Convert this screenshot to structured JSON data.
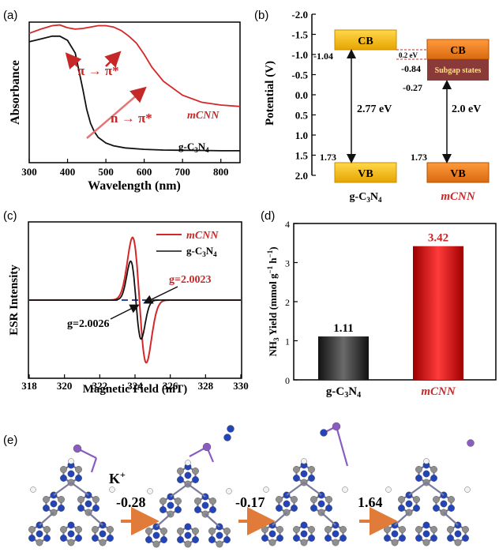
{
  "panel_labels": {
    "a": "(a)",
    "b": "(b)",
    "c": "(c)",
    "d": "(d)",
    "e": "(e)"
  },
  "chart_data": [
    {
      "panel": "a",
      "type": "line",
      "xlabel": "Wavelength (nm)",
      "ylabel": "Absorbance",
      "xlim": [
        300,
        850
      ],
      "xticks": [
        300,
        400,
        500,
        600,
        700,
        800
      ],
      "yticks_shown": false,
      "series": [
        {
          "name": "mCNN",
          "color": "#d62728",
          "x": [
            300,
            330,
            360,
            380,
            400,
            420,
            440,
            460,
            480,
            500,
            520,
            540,
            560,
            580,
            600,
            620,
            650,
            700,
            750,
            800,
            850
          ],
          "y": [
            0.92,
            0.95,
            0.975,
            0.98,
            0.96,
            0.95,
            0.955,
            0.965,
            0.975,
            0.975,
            0.965,
            0.94,
            0.9,
            0.85,
            0.77,
            0.68,
            0.58,
            0.48,
            0.43,
            0.41,
            0.4
          ]
        },
        {
          "name": "g-C3N4",
          "color": "#111111",
          "x": [
            300,
            330,
            360,
            380,
            400,
            420,
            440,
            450,
            460,
            470,
            480,
            500,
            520,
            550,
            600,
            650,
            700,
            750,
            800,
            850
          ],
          "y": [
            0.86,
            0.88,
            0.9,
            0.9,
            0.87,
            0.78,
            0.52,
            0.38,
            0.28,
            0.22,
            0.18,
            0.14,
            0.12,
            0.105,
            0.095,
            0.09,
            0.088,
            0.087,
            0.085,
            0.085
          ]
        }
      ],
      "annotations": [
        "π → π*",
        "n → π*"
      ],
      "series_labels": {
        "mCNN": "mCNN",
        "g-C3N4": "g-C"
      }
    },
    {
      "panel": "b",
      "type": "band-diagram",
      "ylabel": "Potential (V)",
      "ylim": [
        -2.0,
        2.0
      ],
      "yticks": [
        "-2.0",
        "-1.5",
        "-1.0",
        "-0.5",
        "0.0",
        "0.5",
        "1.0",
        "1.5",
        "2.0"
      ],
      "materials": [
        {
          "name": "g-C",
          "cb": -1.04,
          "vb": 1.73,
          "gap_label": "2.77 eV",
          "cb_label": "CB",
          "vb_label": "VB",
          "cb_value": "-1.04",
          "vb_value": "1.73"
        },
        {
          "name": "mCNN",
          "cb": -0.84,
          "vb": 1.73,
          "subgap": -0.27,
          "gap_label": "2.0 eV",
          "cb_label": "CB",
          "vb_label": "VB",
          "cb_value": "-0.84",
          "vb_value": "1.73",
          "subgap_label": "Subgap states",
          "subgap_value": "-0.27"
        }
      ],
      "offset_label": "0.2 eV"
    },
    {
      "panel": "c",
      "type": "line",
      "xlabel": "Magnetic Field (mT)",
      "ylabel": "ESR Intensity",
      "xlim": [
        318,
        330
      ],
      "xticks": [
        318,
        320,
        322,
        324,
        326,
        328,
        330
      ],
      "yticks_shown": false,
      "series": [
        {
          "name": "mCNN",
          "color": "#d62728"
        },
        {
          "name": "g-C3N4",
          "color": "#111111"
        }
      ],
      "legend": [
        "mCNN",
        "g-C"
      ],
      "annotations": [
        "g=2.0023",
        "g=2.0026"
      ]
    },
    {
      "panel": "d",
      "type": "bar",
      "ylabel": "NH",
      "ylim": [
        0,
        4
      ],
      "yticks": [
        0,
        1,
        2,
        3,
        4
      ],
      "categories": [
        "g-C",
        "mCNN"
      ],
      "values": [
        1.11,
        3.42
      ],
      "colors": [
        "#2a2a2a",
        "#e02020"
      ],
      "value_labels": [
        "1.11",
        "3.42"
      ]
    }
  ],
  "panel_e": {
    "ion_label": "K",
    "steps": [
      "-0.28",
      "-0.17",
      "1.64"
    ]
  }
}
